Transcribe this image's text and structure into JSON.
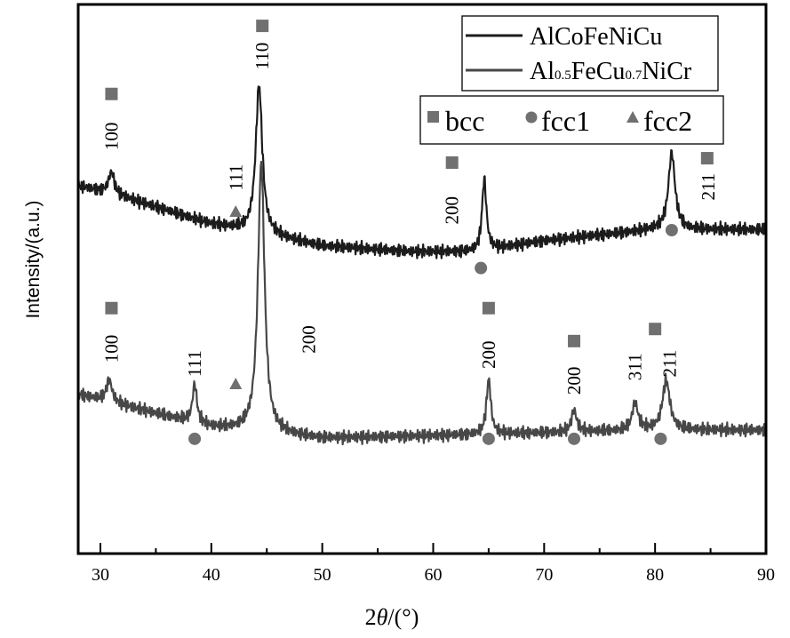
{
  "chart_data": {
    "type": "line",
    "title": "",
    "xlabel_prefix": "2",
    "xlabel_symbol": "θ",
    "xlabel_suffix": "/(°)",
    "ylabel": "Intensity/(a.u.)",
    "xlim": [
      28,
      90
    ],
    "ylim": [
      0,
      100
    ],
    "xticks": [
      30,
      40,
      50,
      60,
      70,
      80,
      90
    ],
    "yticks_shown": false,
    "grid": false,
    "colors": {
      "series_top": "#1c1c1c",
      "series_bottom": "#474747",
      "marker": "#707070",
      "axis": "#000000"
    },
    "series": [
      {
        "name": "AlCoFeNiCu",
        "baseline": [
          [
            28,
            67
          ],
          [
            32,
            65
          ],
          [
            40,
            60
          ],
          [
            50,
            56
          ],
          [
            58,
            55
          ],
          [
            64,
            55
          ],
          [
            70,
            57
          ],
          [
            80,
            59
          ],
          [
            90,
            59
          ]
        ],
        "peaks": [
          {
            "x": 31.0,
            "height": 4,
            "width": 0.4
          },
          {
            "x": 44.3,
            "height": 27,
            "width": 0.45
          },
          {
            "x": 64.6,
            "height": 13,
            "width": 0.3
          },
          {
            "x": 81.5,
            "height": 14,
            "width": 0.45
          }
        ]
      },
      {
        "name": "Al0.5FeCu0.7NiCr",
        "name_parts": [
          "Al",
          "0.5",
          "FeCu",
          "0.7",
          "NiCr"
        ],
        "baseline": [
          [
            28,
            29
          ],
          [
            32,
            27
          ],
          [
            40,
            23
          ],
          [
            50,
            21
          ],
          [
            60,
            21.5
          ],
          [
            70,
            22
          ],
          [
            80,
            22.5
          ],
          [
            90,
            22.5
          ]
        ],
        "peaks": [
          {
            "x": 30.8,
            "height": 4,
            "width": 0.4
          },
          {
            "x": 38.5,
            "height": 7,
            "width": 0.3
          },
          {
            "x": 44.5,
            "height": 49,
            "width": 0.45
          },
          {
            "x": 65.0,
            "height": 10,
            "width": 0.3
          },
          {
            "x": 72.7,
            "height": 4,
            "width": 0.35
          },
          {
            "x": 78.2,
            "height": 5,
            "width": 0.4
          },
          {
            "x": 81.0,
            "height": 9,
            "width": 0.5
          }
        ]
      }
    ],
    "phase_legend": [
      {
        "label": "bcc",
        "marker": "square"
      },
      {
        "label": "fcc1",
        "marker": "circle"
      },
      {
        "label": "fcc2",
        "marker": "triangle"
      }
    ],
    "markers": [
      {
        "phase": "bcc",
        "x": 31.0,
        "y": 83.7
      },
      {
        "phase": "bcc",
        "x": 44.6,
        "y": 96.1
      },
      {
        "phase": "fcc2",
        "x": 42.2,
        "y": 62.3
      },
      {
        "phase": "bcc",
        "x": 61.7,
        "y": 71.2
      },
      {
        "phase": "fcc1",
        "x": 64.3,
        "y": 52.0
      },
      {
        "phase": "fcc1",
        "x": 81.5,
        "y": 58.9
      },
      {
        "phase": "bcc",
        "x": 84.7,
        "y": 72.0
      },
      {
        "phase": "bcc",
        "x": 31.0,
        "y": 44.7
      },
      {
        "phase": "fcc1",
        "x": 38.5,
        "y": 20.9
      },
      {
        "phase": "fcc2",
        "x": 42.2,
        "y": 30.9
      },
      {
        "phase": "bcc",
        "x": 65.0,
        "y": 44.7
      },
      {
        "phase": "fcc1",
        "x": 65.0,
        "y": 20.9
      },
      {
        "phase": "bcc",
        "x": 72.7,
        "y": 38.7
      },
      {
        "phase": "fcc1",
        "x": 72.7,
        "y": 20.9
      },
      {
        "phase": "bcc",
        "x": 80.0,
        "y": 40.9
      },
      {
        "phase": "fcc1",
        "x": 80.5,
        "y": 20.9
      }
    ],
    "annotations": [
      {
        "text": "100",
        "x": 31.0,
        "y": 76.0
      },
      {
        "text": "110",
        "x": 44.6,
        "y": 90.6
      },
      {
        "text": "111",
        "x": 42.2,
        "y": 68.5
      },
      {
        "text": "200",
        "x": 61.7,
        "y": 62.5
      },
      {
        "text": "211",
        "x": 84.8,
        "y": 66.8
      },
      {
        "text": "100",
        "x": 31.0,
        "y": 37.3
      },
      {
        "text": "111",
        "x": 38.5,
        "y": 34.6
      },
      {
        "text": "200",
        "x": 48.8,
        "y": 39.0
      },
      {
        "text": "200",
        "x": 65.0,
        "y": 36.2
      },
      {
        "text": "200",
        "x": 72.7,
        "y": 31.5
      },
      {
        "text": "311",
        "x": 78.2,
        "y": 34.0
      },
      {
        "text": "211",
        "x": 81.3,
        "y": 34.6
      }
    ]
  }
}
